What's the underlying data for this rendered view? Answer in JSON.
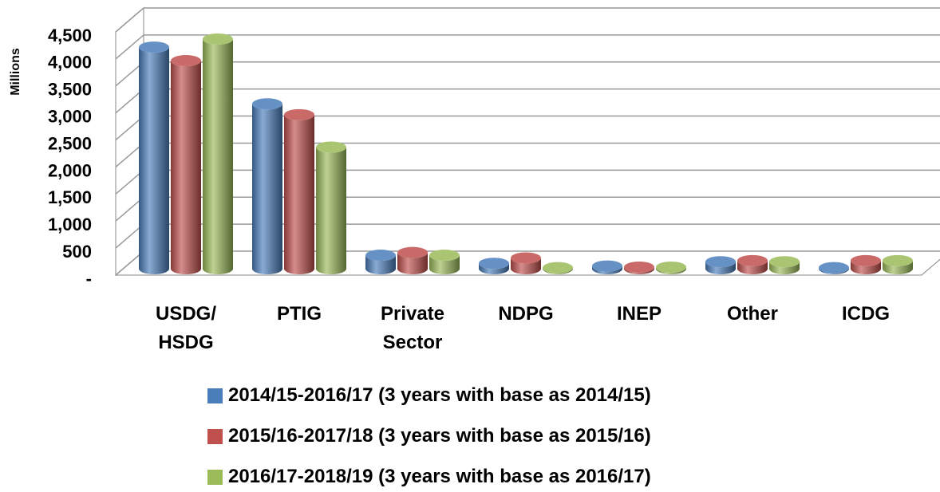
{
  "chart_data": {
    "type": "bar",
    "y_label": "Millions",
    "categories": [
      "USDG/ HSDG",
      "PTIG",
      "Private Sector",
      "NDPG",
      "INEP",
      "Other",
      "ICDG"
    ],
    "series": [
      {
        "name": "2014/15-2016/17 (3 years with base as 2014/15)",
        "color": "#4a7ebb",
        "values": [
          4100,
          3050,
          250,
          100,
          50,
          130,
          20
        ]
      },
      {
        "name": "2015/16-2017/18 (3 years with base as 2015/16)",
        "color": "#c0504d",
        "values": [
          3850,
          2850,
          300,
          200,
          30,
          150,
          150
        ]
      },
      {
        "name": "2016/17-2018/19 (3 years with base as 2016/17)",
        "color": "#9bbb59",
        "values": [
          4250,
          2250,
          250,
          20,
          30,
          130,
          150
        ]
      }
    ],
    "ylim": [
      0,
      4500
    ],
    "yticks": [
      {
        "value": 0,
        "label": "-"
      },
      500,
      {
        "value": 1000,
        "label": "1,000"
      },
      {
        "value": 1500,
        "label": "1,500"
      },
      {
        "value": 2000,
        "label": "2,000"
      },
      {
        "value": 2500,
        "label": "2,500"
      },
      {
        "value": 3000,
        "label": "3,000"
      },
      {
        "value": 3500,
        "label": "3,500"
      },
      {
        "value": 4000,
        "label": "4,000"
      },
      {
        "value": 4500,
        "label": "4,500"
      }
    ],
    "grid": true
  }
}
